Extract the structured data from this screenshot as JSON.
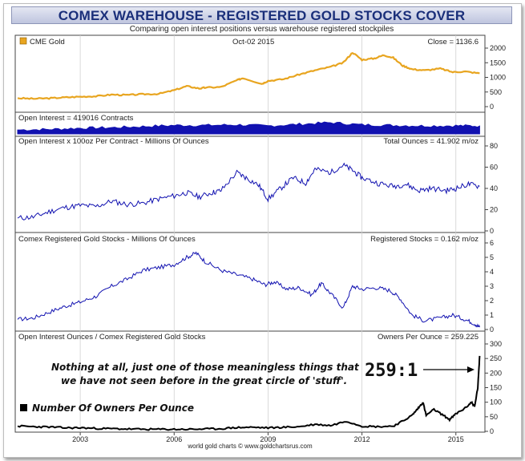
{
  "title": "COMEX WAREHOUSE - REGISTERED GOLD STOCKS COVER",
  "subtitle": "Comparing open interest positions versus warehouse registered stockpiles",
  "footer": "world gold charts © www.goldchartsrus.com",
  "colors": {
    "gold": "#e8a520",
    "blue": "#1111b0",
    "black": "#000000",
    "title": "#1a2f7a"
  },
  "chart_data": [
    {
      "type": "line",
      "name": "cme-gold",
      "legend": "CME Gold",
      "date_label": "Oct-02  2015",
      "value_label": "Close = 1136.6",
      "ylim": [
        0,
        2000
      ],
      "yticks": [
        "0",
        "500",
        "1000",
        "1500",
        "2000"
      ],
      "yticks_values": [
        0,
        500,
        1000,
        1500,
        2000
      ],
      "xlim": [
        2001.0,
        2015.8
      ],
      "points": [
        [
          2001.0,
          290
        ],
        [
          2001.5,
          270
        ],
        [
          2002.0,
          285
        ],
        [
          2002.5,
          315
        ],
        [
          2003.0,
          340
        ],
        [
          2003.5,
          355
        ],
        [
          2004.0,
          410
        ],
        [
          2004.5,
          395
        ],
        [
          2005.0,
          425
        ],
        [
          2005.5,
          435
        ],
        [
          2006.0,
          560
        ],
        [
          2006.4,
          700
        ],
        [
          2006.8,
          620
        ],
        [
          2007.0,
          650
        ],
        [
          2007.5,
          670
        ],
        [
          2008.0,
          900
        ],
        [
          2008.2,
          980
        ],
        [
          2008.8,
          780
        ],
        [
          2009.0,
          880
        ],
        [
          2009.5,
          940
        ],
        [
          2010.0,
          1100
        ],
        [
          2010.5,
          1240
        ],
        [
          2011.0,
          1360
        ],
        [
          2011.4,
          1500
        ],
        [
          2011.7,
          1850
        ],
        [
          2012.0,
          1600
        ],
        [
          2012.4,
          1650
        ],
        [
          2012.7,
          1760
        ],
        [
          2013.0,
          1670
        ],
        [
          2013.3,
          1400
        ],
        [
          2013.6,
          1280
        ],
        [
          2014.0,
          1240
        ],
        [
          2014.5,
          1300
        ],
        [
          2014.9,
          1180
        ],
        [
          2015.3,
          1200
        ],
        [
          2015.76,
          1136.6
        ]
      ]
    },
    {
      "type": "area",
      "name": "open-interest",
      "label": "Open Interest = 419016 Contracts",
      "points": [
        [
          2001.0,
          0.35
        ],
        [
          2002.0,
          0.4
        ],
        [
          2003.0,
          0.5
        ],
        [
          2004.0,
          0.55
        ],
        [
          2005.0,
          0.65
        ],
        [
          2006.0,
          0.75
        ],
        [
          2007.0,
          0.75
        ],
        [
          2008.0,
          0.8
        ],
        [
          2009.0,
          0.7
        ],
        [
          2010.0,
          0.85
        ],
        [
          2011.0,
          1.0
        ],
        [
          2012.0,
          0.8
        ],
        [
          2013.0,
          0.75
        ],
        [
          2014.0,
          0.7
        ],
        [
          2015.0,
          0.72
        ],
        [
          2015.76,
          0.7
        ]
      ]
    },
    {
      "type": "line",
      "name": "open-interest-ounces",
      "label": "Open Interest x 100oz Per Contract - Millions Of Ounces",
      "value_label": "Total Ounces = 41.902 m/oz",
      "ylim": [
        0,
        80
      ],
      "yticks": [
        "0",
        "20",
        "40",
        "60",
        "80"
      ],
      "yticks_values": [
        0,
        20,
        40,
        60,
        80
      ],
      "points": [
        [
          2001.0,
          12
        ],
        [
          2001.5,
          13
        ],
        [
          2002.0,
          18
        ],
        [
          2002.5,
          22
        ],
        [
          2003.0,
          24
        ],
        [
          2003.5,
          23
        ],
        [
          2004.0,
          28
        ],
        [
          2004.5,
          25
        ],
        [
          2005.0,
          26
        ],
        [
          2005.5,
          30
        ],
        [
          2006.0,
          33
        ],
        [
          2006.4,
          36
        ],
        [
          2006.8,
          32
        ],
        [
          2007.2,
          36
        ],
        [
          2007.5,
          38
        ],
        [
          2008.0,
          55
        ],
        [
          2008.3,
          50
        ],
        [
          2008.7,
          43
        ],
        [
          2009.0,
          30
        ],
        [
          2009.4,
          40
        ],
        [
          2009.8,
          50
        ],
        [
          2010.2,
          45
        ],
        [
          2010.5,
          58
        ],
        [
          2011.0,
          55
        ],
        [
          2011.4,
          62
        ],
        [
          2011.7,
          57
        ],
        [
          2012.0,
          50
        ],
        [
          2012.5,
          45
        ],
        [
          2013.0,
          42
        ],
        [
          2013.4,
          44
        ],
        [
          2013.8,
          38
        ],
        [
          2014.2,
          40
        ],
        [
          2014.7,
          38
        ],
        [
          2015.0,
          40
        ],
        [
          2015.4,
          44
        ],
        [
          2015.76,
          41.9
        ]
      ]
    },
    {
      "type": "line",
      "name": "registered-stocks",
      "label": "Comex Registered Gold Stocks - Millions Of Ounces",
      "value_label": "Registered Stocks = 0.162 m/oz",
      "ylim": [
        0,
        6
      ],
      "yticks": [
        "0",
        "1",
        "2",
        "3",
        "4",
        "5",
        "6"
      ],
      "yticks_values": [
        0,
        1,
        2,
        3,
        4,
        5,
        6
      ],
      "points": [
        [
          2001.0,
          0.7
        ],
        [
          2001.5,
          0.8
        ],
        [
          2002.0,
          1.2
        ],
        [
          2002.5,
          1.6
        ],
        [
          2003.0,
          1.9
        ],
        [
          2003.5,
          2.3
        ],
        [
          2004.0,
          3.0
        ],
        [
          2004.5,
          3.5
        ],
        [
          2005.0,
          4.1
        ],
        [
          2005.5,
          4.3
        ],
        [
          2006.0,
          4.5
        ],
        [
          2006.4,
          5.0
        ],
        [
          2006.7,
          5.3
        ],
        [
          2007.0,
          4.7
        ],
        [
          2007.5,
          4.1
        ],
        [
          2008.0,
          3.8
        ],
        [
          2008.5,
          3.5
        ],
        [
          2008.9,
          3.1
        ],
        [
          2009.2,
          3.3
        ],
        [
          2009.6,
          2.8
        ],
        [
          2010.0,
          2.9
        ],
        [
          2010.4,
          2.4
        ],
        [
          2010.7,
          3.2
        ],
        [
          2011.0,
          2.5
        ],
        [
          2011.4,
          1.5
        ],
        [
          2011.7,
          3.0
        ],
        [
          2012.0,
          2.8
        ],
        [
          2012.5,
          2.9
        ],
        [
          2012.9,
          2.7
        ],
        [
          2013.2,
          2.2
        ],
        [
          2013.6,
          1.0
        ],
        [
          2014.0,
          0.6
        ],
        [
          2014.5,
          0.8
        ],
        [
          2014.9,
          1.0
        ],
        [
          2015.3,
          0.7
        ],
        [
          2015.6,
          0.4
        ],
        [
          2015.76,
          0.16
        ]
      ]
    },
    {
      "type": "line",
      "name": "owners-per-ounce",
      "label": "Open Interest Ounces / Comex Registered Gold Stocks",
      "value_label": "Owners Per Ounce = 259.225",
      "ylim": [
        0,
        300
      ],
      "yticks": [
        "0",
        "50",
        "100",
        "150",
        "200",
        "250",
        "300"
      ],
      "yticks_values": [
        0,
        50,
        100,
        150,
        200,
        250,
        300
      ],
      "legend": "Number Of Owners Per Ounce",
      "annotation_line1": "Nothing at all, just one of those meaningless things that",
      "annotation_line2": "we have not seen before in the great circle of 'stuff'.",
      "callout": "259:1",
      "points": [
        [
          2001.0,
          18
        ],
        [
          2001.5,
          16
        ],
        [
          2002.0,
          15
        ],
        [
          2002.5,
          12
        ],
        [
          2003.0,
          12
        ],
        [
          2003.5,
          10
        ],
        [
          2004.0,
          9
        ],
        [
          2004.5,
          8
        ],
        [
          2005.0,
          7
        ],
        [
          2005.5,
          7
        ],
        [
          2006.0,
          7
        ],
        [
          2006.5,
          7
        ],
        [
          2007.0,
          8
        ],
        [
          2007.5,
          9
        ],
        [
          2008.0,
          13
        ],
        [
          2008.5,
          14
        ],
        [
          2009.0,
          12
        ],
        [
          2009.5,
          14
        ],
        [
          2010.0,
          16
        ],
        [
          2010.5,
          24
        ],
        [
          2011.0,
          20
        ],
        [
          2011.5,
          35
        ],
        [
          2012.0,
          18
        ],
        [
          2012.5,
          16
        ],
        [
          2013.0,
          18
        ],
        [
          2013.3,
          35
        ],
        [
          2013.6,
          55
        ],
        [
          2013.8,
          80
        ],
        [
          2013.95,
          100
        ],
        [
          2014.05,
          55
        ],
        [
          2014.3,
          75
        ],
        [
          2014.6,
          55
        ],
        [
          2014.8,
          40
        ],
        [
          2015.0,
          60
        ],
        [
          2015.3,
          80
        ],
        [
          2015.5,
          100
        ],
        [
          2015.6,
          85
        ],
        [
          2015.7,
          150
        ],
        [
          2015.76,
          259
        ]
      ]
    }
  ],
  "x_axis": {
    "ticks": [
      "2003",
      "2006",
      "2009",
      "2012",
      "2015"
    ],
    "tick_values": [
      2003,
      2006,
      2009,
      2012,
      2015
    ]
  }
}
